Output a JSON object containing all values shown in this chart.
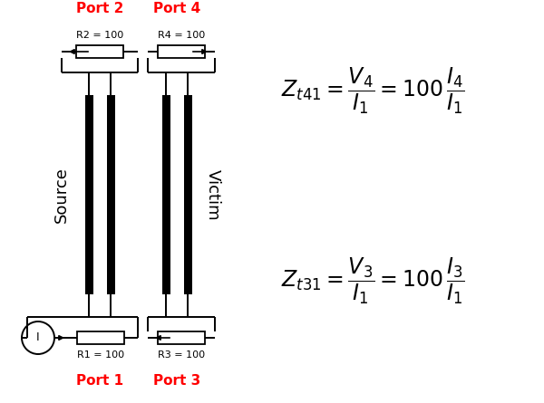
{
  "fig_width": 6.0,
  "fig_height": 4.45,
  "dpi": 100,
  "bg_color": "#ffffff",
  "conductor_color": "#000000",
  "red_color": "#ff0000",
  "src_port2_label": "Port 2",
  "src_port1_label": "Port 1",
  "vic_port4_label": "Port 4",
  "vic_port3_label": "Port 3",
  "source_label": "Source",
  "victim_label": "Victim",
  "r1_label": "R1 = 100",
  "r2_label": "R2 = 100",
  "r3_label": "R3 = 100",
  "r4_label": "R4 = 100",
  "current_label": "I",
  "eq1_lhs": "Z_{t41}",
  "eq1_num": "V_4",
  "eq1_den": "I_1",
  "eq1_rhs_num": "I_4",
  "eq1_rhs_den": "I_1",
  "eq2_lhs": "Z_{t31}",
  "eq2_num": "V_3",
  "eq2_den": "I_1",
  "eq2_rhs_num": "I_3",
  "eq2_rhs_den": "I_1"
}
